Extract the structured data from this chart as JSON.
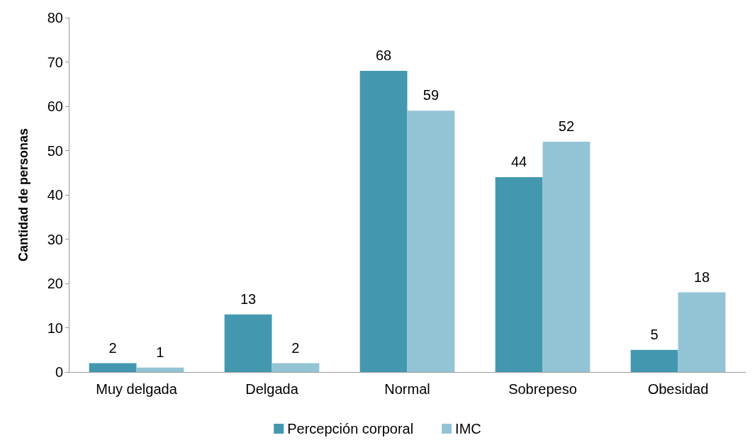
{
  "chart_data": {
    "type": "bar",
    "ylabel": "Cantidad de personas",
    "categories": [
      "Muy delgada",
      "Delgada",
      "Normal",
      "Sobrepeso",
      "Obesidad"
    ],
    "series": [
      {
        "name": "Percepción corporal",
        "color": "#4398b0",
        "values": [
          2,
          13,
          68,
          44,
          5
        ]
      },
      {
        "name": "IMC",
        "color": "#93c4d5",
        "values": [
          1,
          2,
          59,
          52,
          18
        ]
      }
    ],
    "ylim": [
      0,
      80
    ],
    "yticks": [
      0,
      10,
      20,
      30,
      40,
      50,
      60,
      70,
      80
    ],
    "grid": false,
    "legend": "bottom",
    "data_labels": true
  }
}
